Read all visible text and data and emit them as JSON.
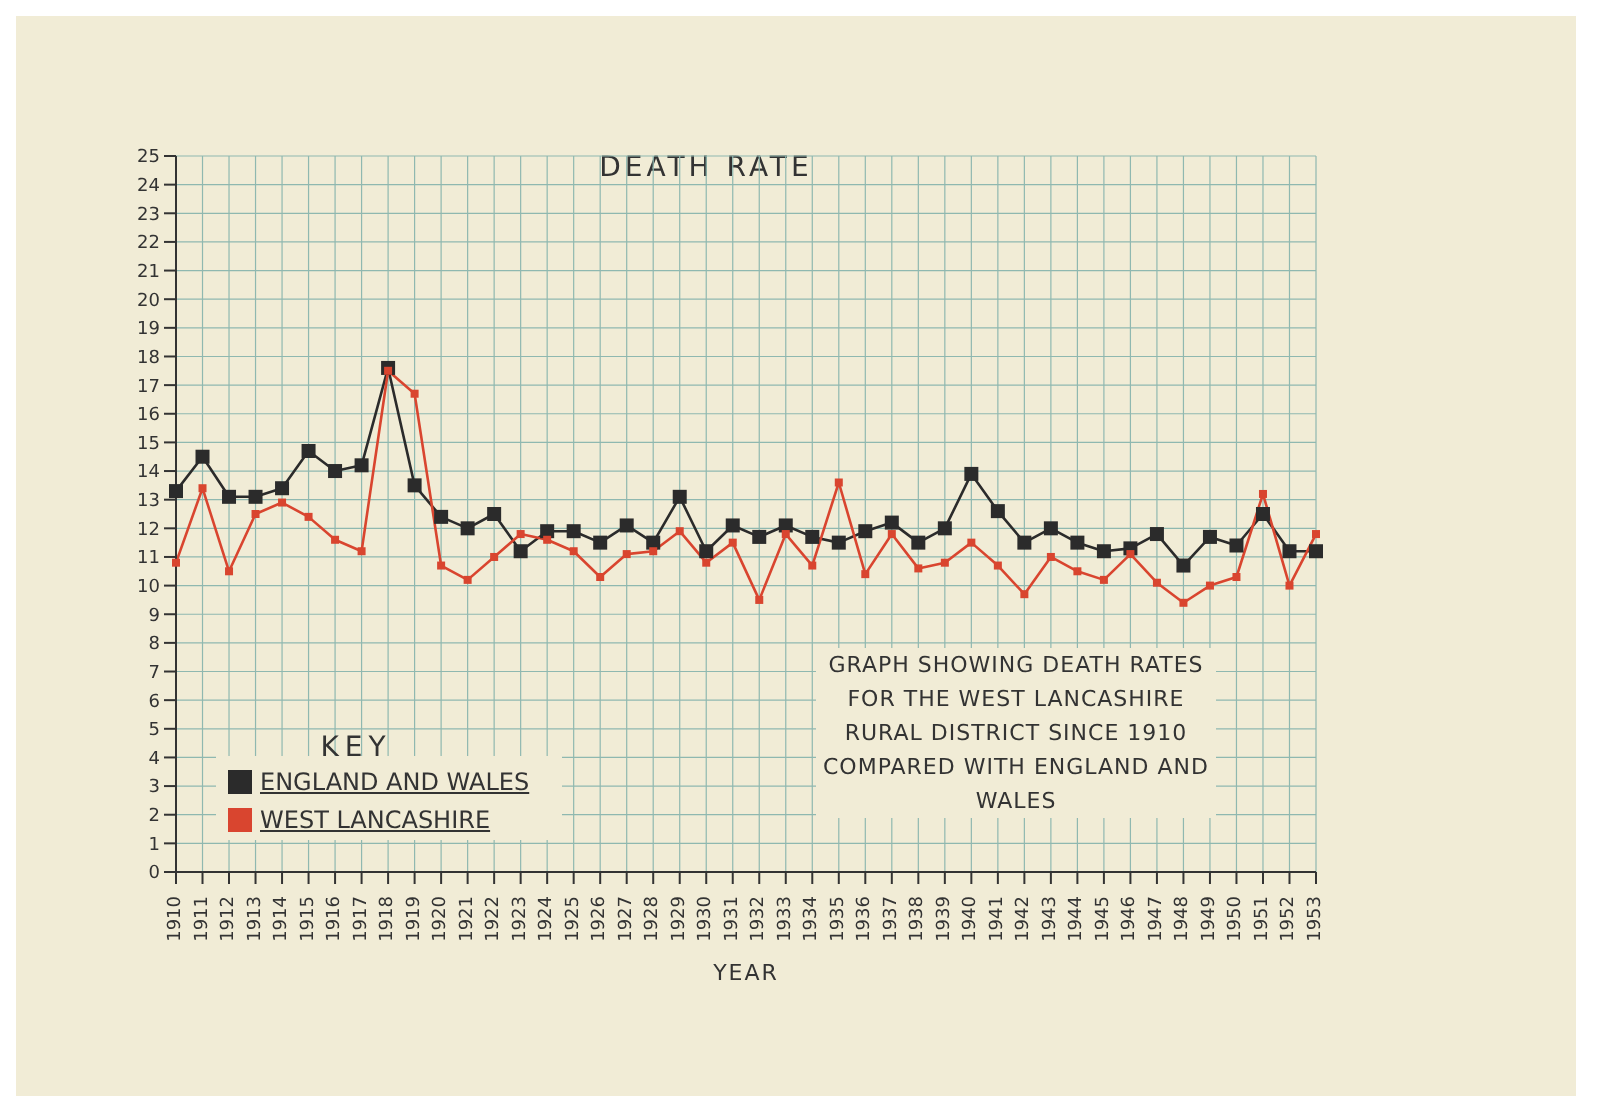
{
  "chart_data": {
    "type": "line",
    "title": "DEATH RATE",
    "xlabel": "YEAR",
    "annotations": [
      "GRAPH SHOWING DEATH RATES FOR THE WEST LANCASHIRE RURAL DISTRICT SINCE 1910 COMPARED WITH ENGLAND AND WALES"
    ],
    "categories": [
      "1910",
      "1911",
      "1912",
      "1913",
      "1914",
      "1915",
      "1916",
      "1917",
      "1918",
      "1919",
      "1920",
      "1921",
      "1922",
      "1923",
      "1924",
      "1925",
      "1926",
      "1927",
      "1928",
      "1929",
      "1930",
      "1931",
      "1932",
      "1933",
      "1934",
      "1935",
      "1936",
      "1937",
      "1938",
      "1939",
      "1940",
      "1941",
      "1942",
      "1943",
      "1944",
      "1945",
      "1946",
      "1947",
      "1948",
      "1949",
      "1950",
      "1951",
      "1952",
      "1953"
    ],
    "series": [
      {
        "name": "ENGLAND AND WALES",
        "color": "#2b2b2b",
        "values": [
          13.3,
          14.5,
          13.1,
          13.1,
          13.4,
          14.7,
          14.0,
          14.2,
          17.6,
          13.5,
          12.4,
          12.0,
          12.5,
          11.2,
          11.9,
          11.9,
          11.5,
          12.1,
          11.5,
          13.1,
          11.2,
          12.1,
          11.7,
          12.1,
          11.7,
          11.5,
          11.9,
          12.2,
          11.5,
          12.0,
          13.9,
          12.6,
          11.5,
          12.0,
          11.5,
          11.2,
          11.3,
          11.8,
          10.7,
          11.7,
          11.4,
          12.5,
          11.2,
          11.2
        ]
      },
      {
        "name": "WEST LANCASHIRE",
        "color": "#d9452f",
        "values": [
          10.8,
          13.4,
          10.5,
          12.5,
          12.9,
          12.4,
          11.6,
          11.2,
          17.5,
          16.7,
          10.7,
          10.2,
          11.0,
          11.8,
          11.6,
          11.2,
          10.3,
          11.1,
          11.2,
          11.9,
          10.8,
          11.5,
          9.5,
          11.8,
          10.7,
          13.6,
          10.4,
          11.8,
          10.6,
          10.8,
          11.5,
          10.7,
          9.7,
          11.0,
          10.5,
          10.2,
          11.1,
          10.1,
          9.4,
          10.0,
          10.3,
          13.2,
          10.0,
          11.8
        ]
      }
    ],
    "ylim": [
      0,
      25
    ],
    "yticks": [
      0,
      1,
      2,
      3,
      4,
      5,
      6,
      7,
      8,
      9,
      10,
      11,
      12,
      13,
      14,
      15,
      16,
      17,
      18,
      19,
      20,
      21,
      22,
      23,
      24,
      25
    ],
    "grid": true,
    "legend": "bottom left",
    "legend_title": "KEY",
    "marker": "square",
    "line_style": "solid"
  }
}
